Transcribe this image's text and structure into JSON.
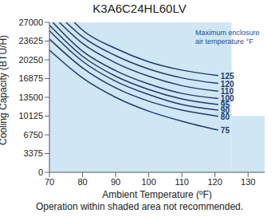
{
  "chart_data": {
    "type": "line",
    "title": "K3A6C24HL60LV",
    "x_label": "Ambient Temperature (ºF)",
    "y_label": "Cooling Capacity (BTU/H)",
    "note": "Operation within shaded area not recommended.",
    "annotation": [
      "Maximum enclosure",
      "air temperature °F"
    ],
    "xlim": [
      70,
      135
    ],
    "xticks": [
      70,
      80,
      90,
      100,
      110,
      120,
      130
    ],
    "ylim": [
      0,
      27000
    ],
    "yticks": [
      0,
      3375,
      6750,
      10125,
      13500,
      16875,
      20250,
      23625,
      27000
    ],
    "grid": true,
    "color": "#1f3c6e",
    "shaded_area": [
      {
        "x": [
          70,
          125
        ],
        "y": [
          0,
          27000
        ]
      },
      {
        "x": [
          125,
          135
        ],
        "y": [
          0,
          10125
        ]
      }
    ],
    "series": [
      {
        "name": "125",
        "x": [
          77.5,
          80,
          90,
          100,
          110,
          121
        ],
        "values": [
          27000,
          25600,
          22300,
          19900,
          18400,
          17400
        ]
      },
      {
        "name": "120",
        "x": [
          75,
          80,
          90,
          100,
          110,
          121
        ],
        "values": [
          27000,
          24400,
          21000,
          18600,
          17000,
          16000
        ]
      },
      {
        "name": "110",
        "x": [
          73,
          80,
          90,
          100,
          110,
          121
        ],
        "values": [
          27000,
          23200,
          19700,
          17300,
          15600,
          14600
        ]
      },
      {
        "name": "100",
        "x": [
          71,
          80,
          90,
          100,
          110,
          121
        ],
        "values": [
          27000,
          21800,
          18300,
          15900,
          14200,
          13300
        ]
      },
      {
        "name": "95",
        "x": [
          70,
          80,
          90,
          100,
          110,
          121
        ],
        "values": [
          26500,
          20900,
          17300,
          14900,
          13200,
          12200
        ]
      },
      {
        "name": "90",
        "x": [
          70,
          80,
          90,
          100,
          110,
          121
        ],
        "values": [
          25500,
          20000,
          16400,
          14000,
          12200,
          11200
        ]
      },
      {
        "name": "80",
        "x": [
          70,
          80,
          90,
          100,
          110,
          121
        ],
        "values": [
          24000,
          18800,
          15200,
          12800,
          11200,
          10100
        ]
      },
      {
        "name": "75",
        "x": [
          70,
          80,
          90,
          100,
          110,
          121
        ],
        "values": [
          22000,
          17000,
          13500,
          11000,
          9200,
          7600
        ]
      }
    ]
  }
}
